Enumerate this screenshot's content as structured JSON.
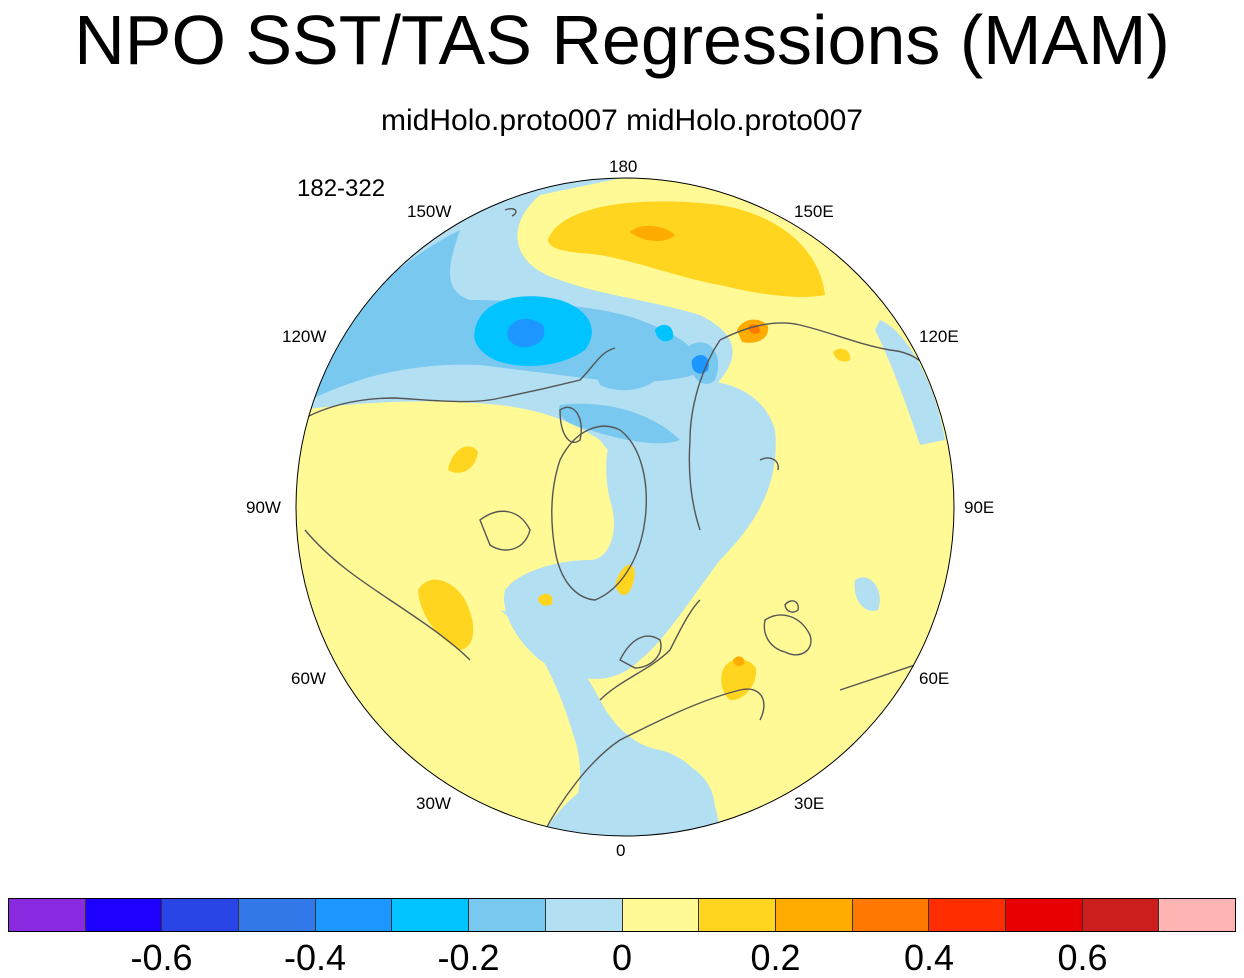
{
  "title": "NPO SST/TAS Regressions (MAM)",
  "subtitle": "midHolo.proto007  midHolo.proto007",
  "range_label": "182-322",
  "lon_labels": {
    "top": "180",
    "bottom": "0",
    "left": "90W",
    "right": "90E",
    "w150": "150W",
    "e150": "150E",
    "w120": "120W",
    "e120": "120E",
    "w60": "60W",
    "e60": "60E",
    "w30": "30W",
    "e30": "30E"
  },
  "colorbar": {
    "colors": [
      "#8a2be2",
      "#1e00ff",
      "#2a45e6",
      "#3278e8",
      "#1e96ff",
      "#00c3ff",
      "#78c8f0",
      "#b3dff2",
      "#fffa96",
      "#ffd520",
      "#ffab00",
      "#ff7800",
      "#ff2d00",
      "#e60000",
      "#cd1e1e",
      "#ffb4b4"
    ],
    "labels": [
      "-0.6",
      "-0.4",
      "-0.2",
      "0",
      "0.2",
      "0.4",
      "0.6"
    ]
  }
}
